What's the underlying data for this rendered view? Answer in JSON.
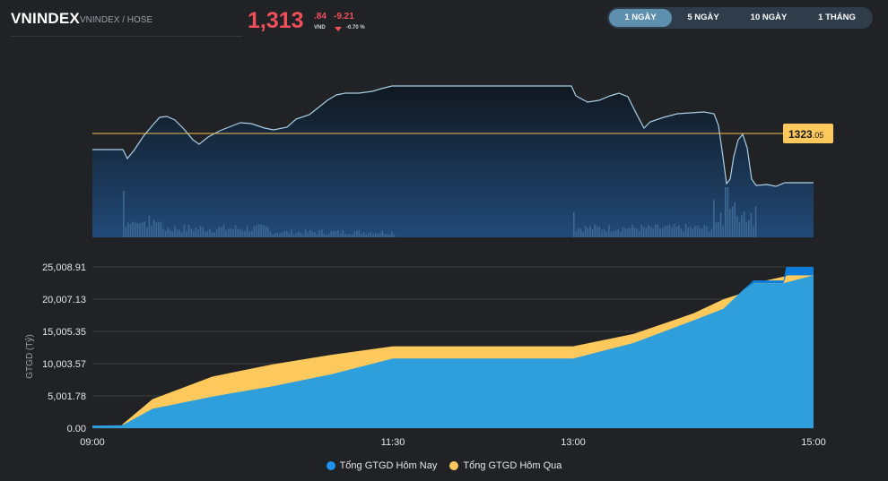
{
  "header": {
    "title": "VNINDEX",
    "subtitle": "VNINDEX / HOSE",
    "price_int": "1,313",
    "price_dec": ".84",
    "price_unit": "VND",
    "change": "-9.21",
    "change_pct": "-0.70 %",
    "price_color": "#f0505a"
  },
  "tabs": [
    {
      "label": "1 NGÀY",
      "active": true
    },
    {
      "label": "5 NGÀY",
      "active": false
    },
    {
      "label": "10 NGÀY",
      "active": false
    },
    {
      "label": "1 THÁNG",
      "active": false
    }
  ],
  "price_chart": {
    "reference_int": "1323",
    "reference_dec": ".05",
    "reference_color": "#f5c050",
    "line_color": "#a9cfe6"
  },
  "chart_data": {
    "type": "area",
    "ylabel": "GTGD (Tỷ)",
    "y_ticks": [
      "25,008.91",
      "20,007.13",
      "15,005.35",
      "10,003.57",
      "5,001.78",
      "0.00"
    ],
    "ylim": [
      0,
      25008.91
    ],
    "x_ticks": [
      "09:00",
      "11:30",
      "13:00",
      "15:00"
    ],
    "x": [
      "09:00",
      "09:15",
      "09:30",
      "10:00",
      "10:30",
      "11:00",
      "11:30",
      "12:00",
      "12:30",
      "13:00",
      "13:30",
      "14:00",
      "14:15",
      "14:25",
      "14:30",
      "14:45",
      "15:00"
    ],
    "series": [
      {
        "name": "Tổng GTGD Hôm Nay",
        "color": "#2e9fdb",
        "values": [
          400,
          450,
          3000,
          4900,
          6500,
          8400,
          10800,
          10800,
          10800,
          10800,
          13200,
          16700,
          18500,
          21500,
          22500,
          22500,
          23700
        ]
      },
      {
        "name": "Tổng GTGD Hôm Qua",
        "color": "#fdc95c",
        "values": [
          null,
          600,
          4500,
          8000,
          9900,
          11400,
          12700,
          12700,
          12700,
          12700,
          14600,
          17800,
          20000,
          21000,
          22500,
          23500,
          25008
        ]
      }
    ],
    "grid": true,
    "legend": "bottom-center"
  }
}
